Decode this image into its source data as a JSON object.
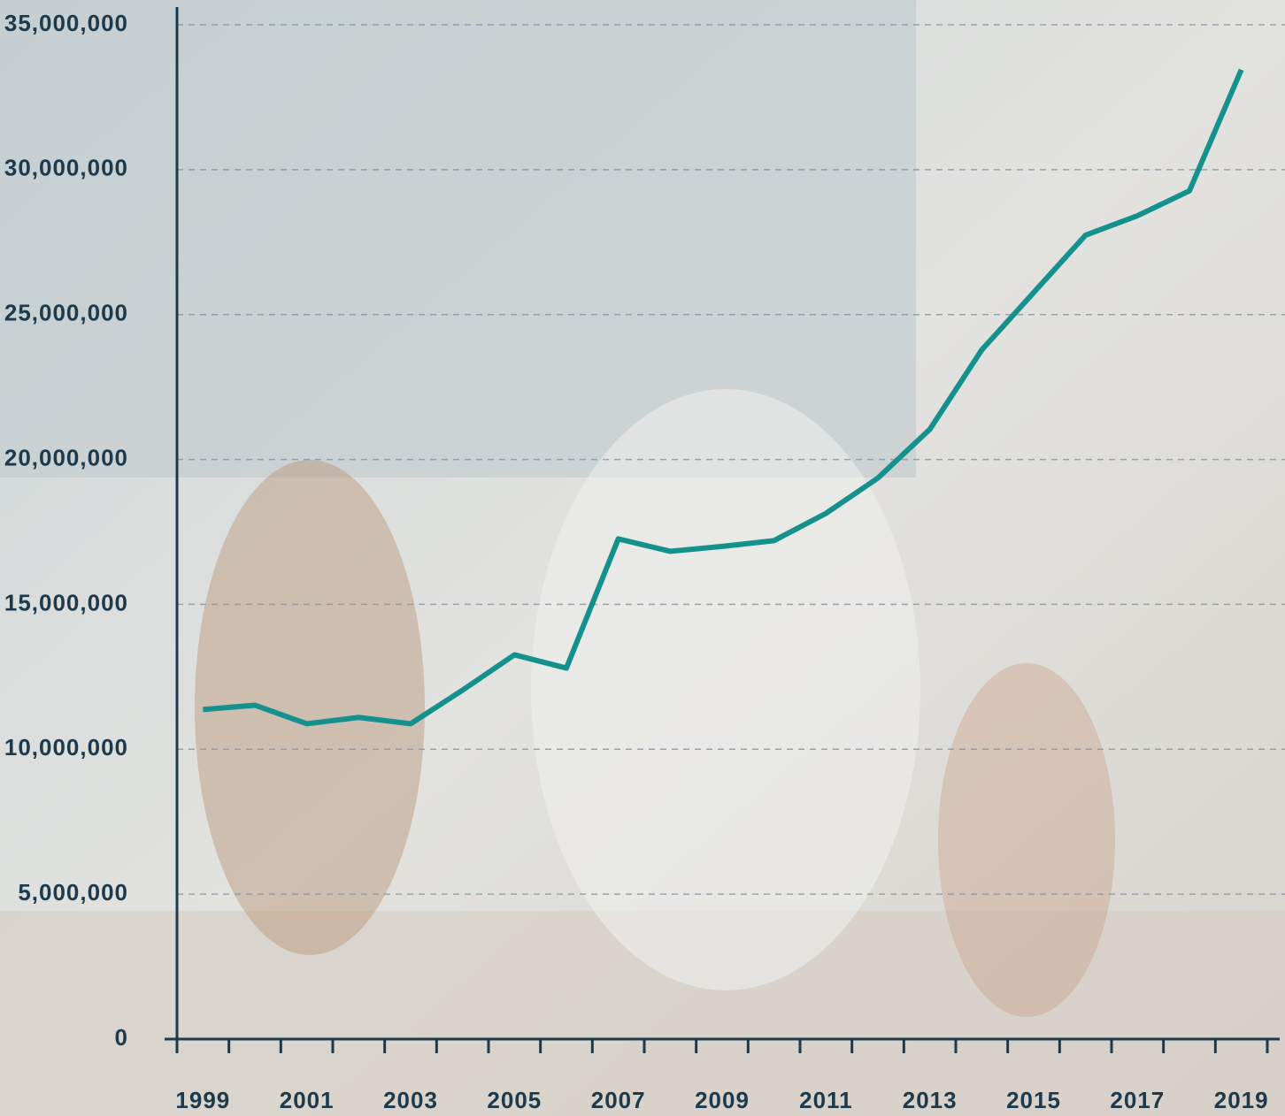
{
  "chart_data": {
    "type": "line",
    "categories": [
      "1999",
      null,
      "2001",
      null,
      "2003",
      null,
      "2005",
      null,
      "2007",
      null,
      "2009",
      null,
      "2011",
      null,
      "2013",
      null,
      "2015",
      null,
      "2017",
      null,
      "2019"
    ],
    "series": [
      {
        "color": "#14918d",
        "values": [
          11370000,
          11520000,
          10880000,
          11100000,
          10880000,
          12040000,
          13260000,
          12800000,
          17260000,
          16830000,
          17000000,
          17200000,
          18140000,
          19360000,
          21040000,
          23780000,
          25760000,
          27740000,
          28410000,
          29270000,
          33450000
        ]
      }
    ],
    "ylim": [
      0,
      35000000
    ],
    "yticks": [
      0,
      {
        "value": 5000000,
        "label": "5,000,000"
      },
      {
        "value": 10000000,
        "label": "10,000,000"
      },
      {
        "value": 15000000,
        "label": "15,000,000"
      },
      {
        "value": 20000000,
        "label": "20,000,000"
      },
      {
        "value": 25000000,
        "label": "25,000,000"
      },
      {
        "value": 30000000,
        "label": "30,000,000"
      },
      {
        "value": 35000000,
        "label": "35,000,000"
      }
    ],
    "grid": true
  }
}
